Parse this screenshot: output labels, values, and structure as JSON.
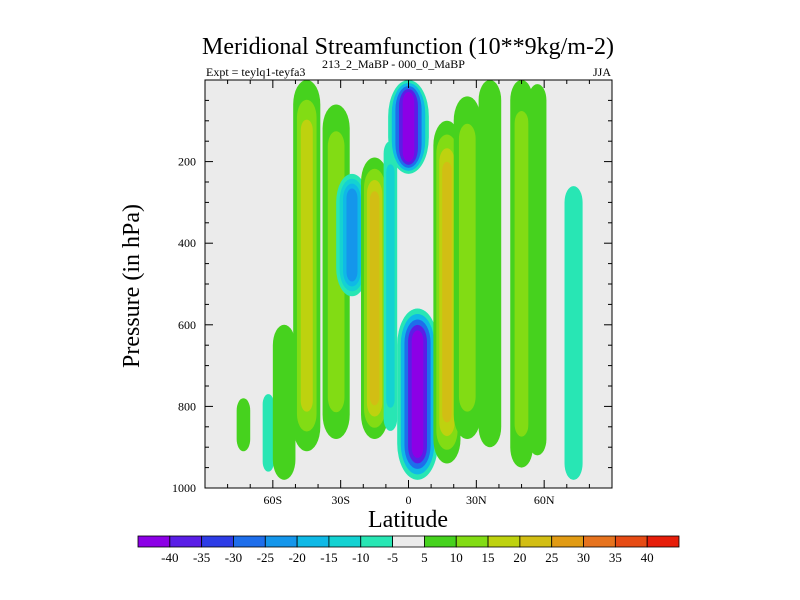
{
  "chart_data": {
    "type": "heatmap",
    "title": "Meridional Streamfunction (10**9kg/m-2)",
    "subtitle_left": "Expt = teylq1-teyfa3",
    "subtitle_mid": "213_2_MaBP - 000_0_MaBP",
    "subtitle_right": "JJA",
    "xlabel": "Latitude",
    "ylabel": "Pressure (in hPa)",
    "xlim": [
      -90,
      90
    ],
    "ylim": [
      1000,
      0
    ],
    "x_ticks": [
      {
        "value": -60,
        "label": "60S"
      },
      {
        "value": -30,
        "label": "30S"
      },
      {
        "value": 0,
        "label": "0"
      },
      {
        "value": 30,
        "label": "30N"
      },
      {
        "value": 60,
        "label": "60N"
      }
    ],
    "y_ticks": [
      {
        "value": 200,
        "label": "200"
      },
      {
        "value": 400,
        "label": "400"
      },
      {
        "value": 600,
        "label": "600"
      },
      {
        "value": 800,
        "label": "800"
      },
      {
        "value": 1000,
        "label": "1000"
      }
    ],
    "colorbar": {
      "labels": [
        "-40",
        "-35",
        "-30",
        "-25",
        "-20",
        "-15",
        "-10",
        "-5",
        "5",
        "10",
        "15",
        "20",
        "25",
        "30",
        "35",
        "40"
      ],
      "colors": [
        "#8C00E6",
        "#5A1EE6",
        "#2D3CE6",
        "#1E6EEB",
        "#1496EB",
        "#0FB9E6",
        "#14D2D2",
        "#28E6B4",
        "#EBEBEB",
        "#46D21E",
        "#82DC14",
        "#BED20F",
        "#D2BE14",
        "#E19B14",
        "#E6731E",
        "#E64B14",
        "#E61E0A"
      ]
    },
    "bands": [
      {
        "lat": -73,
        "p_top": 780,
        "p_bot": 910,
        "width": 6,
        "levels": [
          1
        ]
      },
      {
        "lat": -62,
        "p_top": 770,
        "p_bot": 960,
        "width": 5,
        "levels": [
          -1
        ]
      },
      {
        "lat": -55,
        "p_top": 600,
        "p_bot": 980,
        "width": 10,
        "levels": [
          1
        ]
      },
      {
        "lat": -45,
        "p_top": 0,
        "p_bot": 910,
        "width": 12,
        "levels": [
          1,
          2,
          3
        ]
      },
      {
        "lat": -32,
        "p_top": 60,
        "p_bot": 880,
        "width": 12,
        "levels": [
          1,
          2
        ]
      },
      {
        "lat": -25,
        "p_top": 230,
        "p_bot": 530,
        "width": 14,
        "levels": [
          -1,
          -2,
          -3,
          -4
        ]
      },
      {
        "lat": -15,
        "p_top": 190,
        "p_bot": 880,
        "width": 12,
        "levels": [
          1,
          2,
          3,
          4
        ]
      },
      {
        "lat": -8,
        "p_top": 150,
        "p_bot": 860,
        "width": 6,
        "levels": [
          -1,
          -2
        ]
      },
      {
        "lat": 0,
        "p_top": 0,
        "p_bot": 230,
        "width": 18,
        "levels": [
          -1,
          -3,
          -5,
          -7,
          -8
        ]
      },
      {
        "lat": 4,
        "p_top": 560,
        "p_bot": 980,
        "width": 18,
        "levels": [
          -1,
          -3,
          -5,
          -7,
          -8
        ]
      },
      {
        "lat": 17,
        "p_top": 100,
        "p_bot": 940,
        "width": 12,
        "levels": [
          1,
          2,
          3,
          4
        ]
      },
      {
        "lat": 26,
        "p_top": 40,
        "p_bot": 880,
        "width": 12,
        "levels": [
          1,
          2
        ]
      },
      {
        "lat": 36,
        "p_top": 0,
        "p_bot": 900,
        "width": 10,
        "levels": [
          1
        ]
      },
      {
        "lat": 50,
        "p_top": 0,
        "p_bot": 950,
        "width": 10,
        "levels": [
          1,
          2
        ]
      },
      {
        "lat": 57,
        "p_top": 10,
        "p_bot": 920,
        "width": 8,
        "levels": [
          1
        ]
      },
      {
        "lat": 73,
        "p_top": 260,
        "p_bot": 980,
        "width": 8,
        "levels": [
          -1
        ]
      }
    ]
  }
}
